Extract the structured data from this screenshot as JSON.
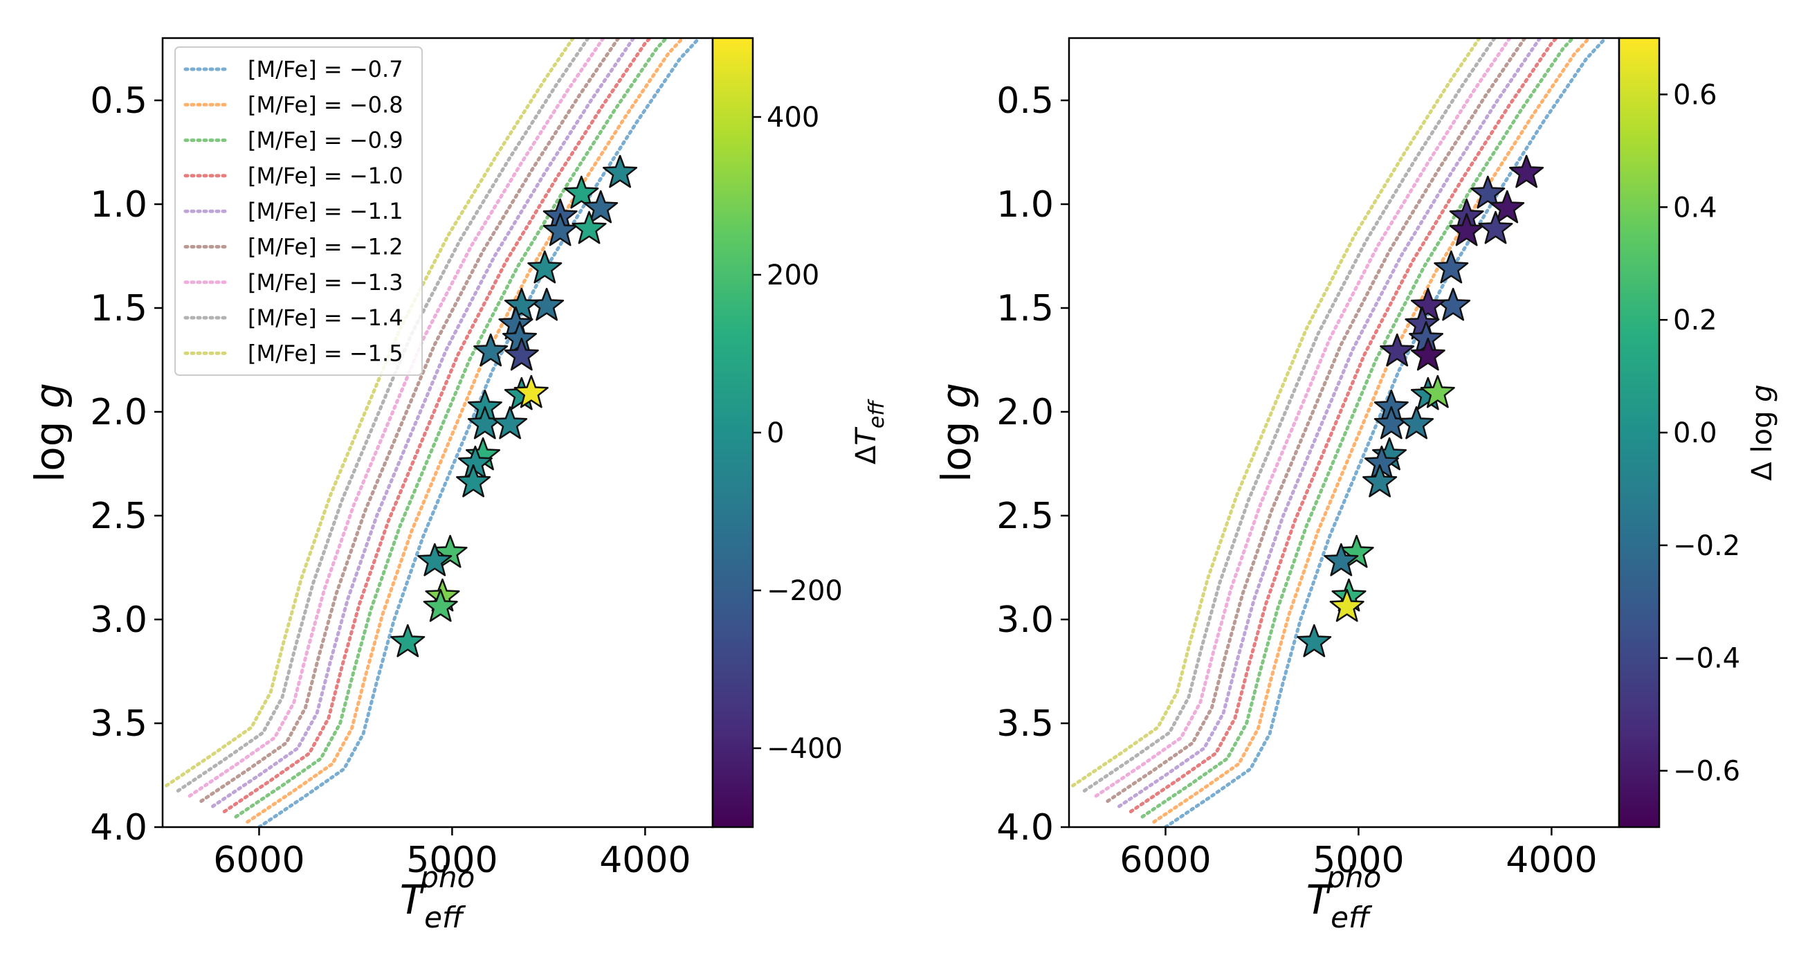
{
  "chart_data": [
    {
      "type": "scatter",
      "panel": "left",
      "title": "",
      "xlabel": "T_eff^pho",
      "xlabel_main": "T",
      "xlabel_sub": "eff",
      "xlabel_sup": "pho",
      "ylabel": "log g",
      "ylabel_prefix": "log ",
      "ylabel_var": "g",
      "xlim": [
        6500,
        3650
      ],
      "ylim": [
        4.0,
        0.2
      ],
      "x_ticks": [
        6000,
        5000,
        4000
      ],
      "x_tick_labels": [
        "6000",
        "5000",
        "4000"
      ],
      "y_ticks": [
        0.5,
        1.0,
        1.5,
        2.0,
        2.5,
        3.0,
        3.5,
        4.0
      ],
      "y_tick_labels": [
        "0.5",
        "1.0",
        "1.5",
        "2.0",
        "2.5",
        "3.0",
        "3.5",
        "4.0"
      ],
      "colorbar": {
        "label": "ΔT_eff",
        "label_delta": "Δ",
        "label_main": "T",
        "label_sub": "eff",
        "range": [
          -500,
          500
        ],
        "ticks": [
          400,
          200,
          0,
          -200,
          -400
        ],
        "tick_labels": [
          "400",
          "200",
          "0",
          "−200",
          "−400"
        ],
        "colormap": "viridis"
      },
      "legend": {
        "location": "upper-left",
        "entries": [
          {
            "label": "[M/Fe] = −0.7",
            "color": "#1f77b4"
          },
          {
            "label": "[M/Fe] = −0.8",
            "color": "#ff7f0e"
          },
          {
            "label": "[M/Fe] = −0.9",
            "color": "#2ca02c"
          },
          {
            "label": "[M/Fe] = −1.0",
            "color": "#d62728"
          },
          {
            "label": "[M/Fe] = −1.1",
            "color": "#9467bd"
          },
          {
            "label": "[M/Fe] = −1.2",
            "color": "#8c564b"
          },
          {
            "label": "[M/Fe] = −1.3",
            "color": "#e377c2"
          },
          {
            "label": "[M/Fe] = −1.4",
            "color": "#7f7f7f"
          },
          {
            "label": "[M/Fe] = −1.5",
            "color": "#bcbd22"
          }
        ]
      },
      "points": [
        {
          "teff": 4130,
          "logg": 0.85,
          "c": -50
        },
        {
          "teff": 4330,
          "logg": 0.95,
          "c": 80
        },
        {
          "teff": 4440,
          "logg": 1.06,
          "c": -220
        },
        {
          "teff": 4230,
          "logg": 1.02,
          "c": -170
        },
        {
          "teff": 4440,
          "logg": 1.13,
          "c": -180
        },
        {
          "teff": 4290,
          "logg": 1.12,
          "c": 90
        },
        {
          "teff": 4520,
          "logg": 1.31,
          "c": -30
        },
        {
          "teff": 4510,
          "logg": 1.49,
          "c": -130
        },
        {
          "teff": 4640,
          "logg": 1.49,
          "c": -80
        },
        {
          "teff": 4670,
          "logg": 1.58,
          "c": -170
        },
        {
          "teff": 4650,
          "logg": 1.65,
          "c": -160
        },
        {
          "teff": 4800,
          "logg": 1.71,
          "c": -120
        },
        {
          "teff": 4640,
          "logg": 1.73,
          "c": -290
        },
        {
          "teff": 4640,
          "logg": 1.92,
          "c": 30
        },
        {
          "teff": 4590,
          "logg": 1.91,
          "c": 480
        },
        {
          "teff": 4830,
          "logg": 1.98,
          "c": -20
        },
        {
          "teff": 4830,
          "logg": 2.06,
          "c": -50
        },
        {
          "teff": 4700,
          "logg": 2.06,
          "c": -40
        },
        {
          "teff": 4840,
          "logg": 2.21,
          "c": 140
        },
        {
          "teff": 4880,
          "logg": 2.25,
          "c": -20
        },
        {
          "teff": 4890,
          "logg": 2.34,
          "c": -10
        },
        {
          "teff": 5010,
          "logg": 2.68,
          "c": 200
        },
        {
          "teff": 5090,
          "logg": 2.72,
          "c": -30
        },
        {
          "teff": 5050,
          "logg": 2.89,
          "c": 300
        },
        {
          "teff": 5060,
          "logg": 2.94,
          "c": 200
        },
        {
          "teff": 5230,
          "logg": 3.11,
          "c": 70
        }
      ]
    },
    {
      "type": "scatter",
      "panel": "right",
      "title": "",
      "xlabel": "T_eff^pho",
      "xlabel_main": "T",
      "xlabel_sub": "eff",
      "xlabel_sup": "pho",
      "ylabel": "log g",
      "ylabel_prefix": "log ",
      "ylabel_var": "g",
      "xlim": [
        6500,
        3650
      ],
      "ylim": [
        4.0,
        0.2
      ],
      "x_ticks": [
        6000,
        5000,
        4000
      ],
      "x_tick_labels": [
        "6000",
        "5000",
        "4000"
      ],
      "y_ticks": [
        0.5,
        1.0,
        1.5,
        2.0,
        2.5,
        3.0,
        3.5,
        4.0
      ],
      "y_tick_labels": [
        "0.5",
        "1.0",
        "1.5",
        "2.0",
        "2.5",
        "3.0",
        "3.5",
        "4.0"
      ],
      "colorbar": {
        "label": "Δ log g",
        "label_delta": "Δ log ",
        "label_var": "g",
        "range": [
          -0.7,
          0.7
        ],
        "ticks": [
          0.6,
          0.4,
          0.2,
          0.0,
          -0.2,
          -0.4,
          -0.6
        ],
        "tick_labels": [
          "0.6",
          "0.4",
          "0.2",
          "0.0",
          "−0.2",
          "−0.4",
          "−0.6"
        ],
        "colormap": "viridis"
      },
      "points": [
        {
          "teff": 4130,
          "logg": 0.85,
          "c": -0.6
        },
        {
          "teff": 4330,
          "logg": 0.95,
          "c": -0.4
        },
        {
          "teff": 4440,
          "logg": 1.06,
          "c": -0.5
        },
        {
          "teff": 4230,
          "logg": 1.02,
          "c": -0.62
        },
        {
          "teff": 4440,
          "logg": 1.13,
          "c": -0.62
        },
        {
          "teff": 4290,
          "logg": 1.12,
          "c": -0.45
        },
        {
          "teff": 4520,
          "logg": 1.31,
          "c": -0.3
        },
        {
          "teff": 4510,
          "logg": 1.49,
          "c": -0.3
        },
        {
          "teff": 4640,
          "logg": 1.49,
          "c": -0.55
        },
        {
          "teff": 4670,
          "logg": 1.58,
          "c": -0.45
        },
        {
          "teff": 4650,
          "logg": 1.65,
          "c": -0.35
        },
        {
          "teff": 4800,
          "logg": 1.71,
          "c": -0.5
        },
        {
          "teff": 4640,
          "logg": 1.73,
          "c": -0.65
        },
        {
          "teff": 4640,
          "logg": 1.92,
          "c": -0.05
        },
        {
          "teff": 4590,
          "logg": 1.91,
          "c": 0.4
        },
        {
          "teff": 4830,
          "logg": 1.98,
          "c": -0.25
        },
        {
          "teff": 4830,
          "logg": 2.06,
          "c": -0.25
        },
        {
          "teff": 4700,
          "logg": 2.06,
          "c": -0.15
        },
        {
          "teff": 4840,
          "logg": 2.21,
          "c": -0.1
        },
        {
          "teff": 4880,
          "logg": 2.25,
          "c": -0.25
        },
        {
          "teff": 4890,
          "logg": 2.34,
          "c": -0.12
        },
        {
          "teff": 5010,
          "logg": 2.68,
          "c": 0.25
        },
        {
          "teff": 5090,
          "logg": 2.72,
          "c": -0.15
        },
        {
          "teff": 5050,
          "logg": 2.89,
          "c": 0.2
        },
        {
          "teff": 5060,
          "logg": 2.94,
          "c": 0.65
        },
        {
          "teff": 5230,
          "logg": 3.11,
          "c": -0.05
        }
      ]
    }
  ],
  "isochrones": {
    "metallicities": [
      "-0.7",
      "-0.8",
      "-0.9",
      "-1.0",
      "-1.1",
      "-1.2",
      "-1.3",
      "-1.4",
      "-1.5"
    ],
    "colors": [
      "#1f77b4",
      "#ff7f0e",
      "#2ca02c",
      "#d62728",
      "#9467bd",
      "#8c564b",
      "#e377c2",
      "#7f7f7f",
      "#bcbd22"
    ],
    "base_track": [
      {
        "teff": 6000,
        "logg": 4.0
      },
      {
        "teff": 5760,
        "logg": 3.85
      },
      {
        "teff": 5560,
        "logg": 3.72
      },
      {
        "teff": 5460,
        "logg": 3.55
      },
      {
        "teff": 5390,
        "logg": 3.3
      },
      {
        "teff": 5300,
        "logg": 3.0
      },
      {
        "teff": 5150,
        "logg": 2.6
      },
      {
        "teff": 4970,
        "logg": 2.2
      },
      {
        "teff": 4790,
        "logg": 1.8
      },
      {
        "teff": 4540,
        "logg": 1.35
      },
      {
        "teff": 4280,
        "logg": 0.95
      },
      {
        "teff": 4040,
        "logg": 0.6
      },
      {
        "teff": 3820,
        "logg": 0.3
      },
      {
        "teff": 3720,
        "logg": 0.2
      }
    ],
    "teff_shift_per_step": 60,
    "logg_shift_per_step": 0.025
  }
}
